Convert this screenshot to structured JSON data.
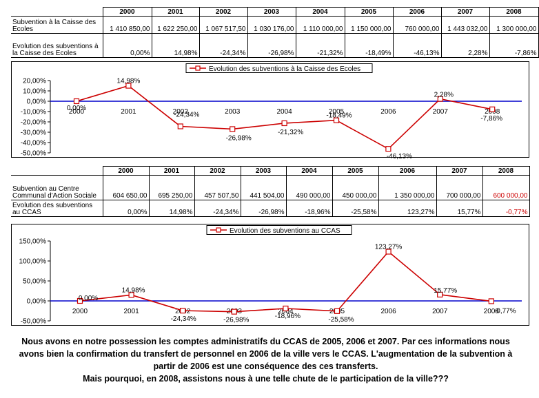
{
  "table1": {
    "years": [
      "2000",
      "2001",
      "2002",
      "2003",
      "2004",
      "2005",
      "2006",
      "2007",
      "2008"
    ],
    "rows": [
      {
        "label": "Subvention à la Caisse des Ecoles",
        "values": [
          "1 410 850,00",
          "1 622 250,00",
          "1 067 517,50",
          "1 030 176,00",
          "1 110 000,00",
          "1 150 000,00",
          "760 000,00",
          "1 443 032,00",
          "1 300 000,00"
        ]
      },
      {
        "label": "Evolution des subventions à la Caisse des Ecoles",
        "values": [
          "0,00%",
          "14,98%",
          "-24,34%",
          "-26,98%",
          "-21,32%",
          "-18,49%",
          "-46,13%",
          "2,28%",
          "-7,86%"
        ]
      }
    ]
  },
  "table2": {
    "years": [
      "2000",
      "2001",
      "2002",
      "2003",
      "2004",
      "2005",
      "2006",
      "2007",
      "2008"
    ],
    "rows": [
      {
        "label": "Subvention au Centre Communal d'Action Sociale",
        "values": [
          "604 650,00",
          "695 250,00",
          "457 507,50",
          "441 504,00",
          "490 000,00",
          "450 000,00",
          "1 350 000,00",
          "700 000,00",
          "600 000,00"
        ]
      },
      {
        "label": "Evolution des subventions au CCAS",
        "values": [
          "0,00%",
          "14,98%",
          "-24,34%",
          "-26,98%",
          "-18,96%",
          "-25,58%",
          "123,27%",
          "15,77%",
          "-0,77%"
        ]
      }
    ]
  },
  "table2_highlight_color": "#cc0000",
  "chart_data": [
    {
      "type": "line",
      "x": [
        "2000",
        "2001",
        "2002",
        "2003",
        "2004",
        "2005",
        "2006",
        "2007",
        "2008"
      ],
      "series": [
        {
          "name": "Evolution des subventions à la Caisse des Ecoles",
          "values": [
            0.0,
            14.98,
            -24.34,
            -26.98,
            -21.32,
            -18.49,
            -46.13,
            2.28,
            -7.86
          ],
          "labels": [
            "0,00%",
            "14,98%",
            "-24,34%",
            "-26,98%",
            "-21,32%",
            "-18,49%",
            "-46,13%",
            "2,28%",
            "-7,86%"
          ]
        }
      ],
      "ylim": [
        -50,
        20
      ],
      "yticks": [
        20,
        10,
        0,
        -10,
        -20,
        -30,
        -40,
        -50
      ],
      "yticklabels": [
        "20,00%",
        "10,00%",
        "0,00%",
        "-10,00%",
        "-20,00%",
        "-30,00%",
        "-40,00%",
        "-50,00%"
      ],
      "legend": "top",
      "series_color": "#cc0000",
      "axis_color": "#0000cc"
    },
    {
      "type": "line",
      "x": [
        "2000",
        "2001",
        "2002",
        "2003",
        "2004",
        "2005",
        "2006",
        "2007",
        "2008"
      ],
      "series": [
        {
          "name": "Evolution des subventions au CCAS",
          "values": [
            0.0,
            14.98,
            -24.34,
            -26.98,
            -18.96,
            -25.58,
            123.27,
            15.77,
            -0.77
          ],
          "labels": [
            "0,00%",
            "14,98%",
            "-24,34%",
            "-26,98%",
            "-18,96%",
            "-25,58%",
            "123,27%",
            "15,77%",
            "-0,77%"
          ]
        }
      ],
      "ylim": [
        -50,
        150
      ],
      "yticks": [
        150,
        100,
        50,
        0,
        -50
      ],
      "yticklabels": [
        "150,00%",
        "100,00%",
        "50,00%",
        "0,00%",
        "-50,00%"
      ],
      "legend": "top",
      "series_color": "#cc0000",
      "axis_color": "#0000cc"
    }
  ],
  "caption": [
    "Nous avons en notre possession les comptes administratifs du CCAS de 2005, 2006 et 2007. Par ces informations nous",
    "avons bien la confirmation du transfert  de personnel en 2006 de la ville vers le CCAS. L'augmentation de la subvention à",
    "partir de 2006 est une conséquence des ces transferts.",
    "Mais pourquoi, en 2008, assistons nous à une telle chute de le participation de la ville???"
  ]
}
